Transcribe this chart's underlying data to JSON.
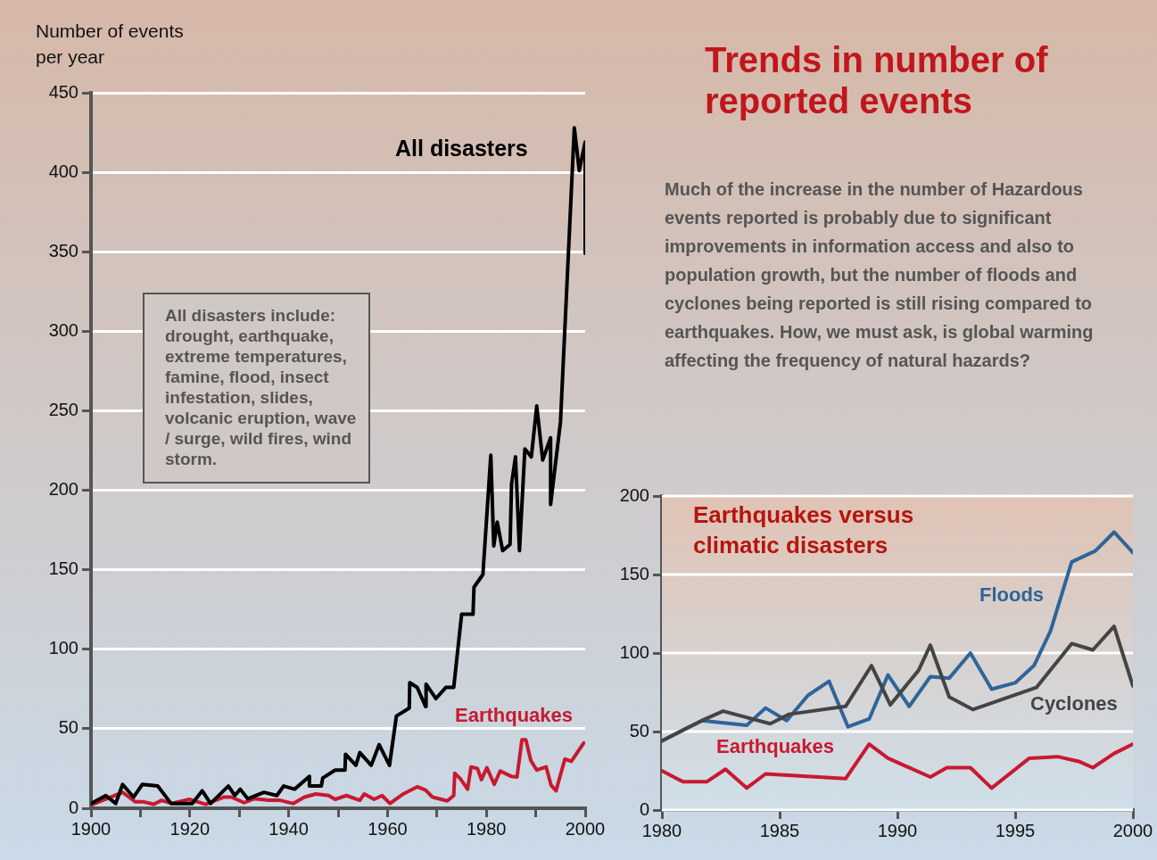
{
  "chart_data": [
    {
      "type": "line",
      "ylabel": "Number of events per year",
      "annotations": [
        "All disasters include: drought, earthquake, extreme temperatures, famine, flood, insect infestation, slides, volcanic eruption, wave / surge, wild fires, wind storm."
      ],
      "series": [
        {
          "name": "All disasters",
          "color": "#000000",
          "x": [
            1900,
            1903,
            1905,
            1906.4,
            1908.6,
            1910.4,
            1913.5,
            1916.2,
            1920.5,
            1922.5,
            1924.2,
            1926.5,
            1927.8,
            1929.1,
            1930.2,
            1931.7,
            1935,
            1937.6,
            1939,
            1941.2,
            1944.2,
            1944.2,
            1946.6,
            1946.9,
            1949.4,
            1951.4,
            1951.5,
            1953.6,
            1954.4,
            1956.7,
            1958.3,
            1960.4,
            1961.8,
            1964.4,
            1964.5,
            1966,
            1967.7,
            1967.8,
            1969.8,
            1971.8,
            1973.4,
            1975,
            1977.3,
            1977.5,
            1979.3,
            1980.9,
            1981.5,
            1982.2,
            1983.3,
            1984.8,
            1985.1,
            1985.9,
            1986.7,
            1987.8,
            1989.1,
            1990.2,
            1991.4,
            1993,
            1993,
            1995,
            1997.8,
            1998.8,
            2000,
            2000
          ],
          "values": [
            3,
            8,
            3,
            15,
            7,
            15,
            14,
            3,
            3,
            11,
            3,
            10,
            14,
            8,
            12,
            6,
            10,
            8,
            14,
            12,
            20,
            14,
            14,
            19,
            24,
            24,
            34,
            27,
            35,
            27,
            40,
            27,
            58,
            63,
            79,
            76,
            64,
            78,
            69,
            76,
            76,
            122,
            122,
            139,
            147,
            222,
            165,
            180,
            162,
            166,
            204,
            221,
            162,
            226,
            221,
            253,
            219,
            233,
            191,
            243,
            428,
            401,
            419,
            349
          ]
        },
        {
          "name": "Earthquakes",
          "color": "#c8192f",
          "x": [
            1900,
            1906.4,
            1909,
            1910.7,
            1912.7,
            1914.3,
            1916.3,
            1919.9,
            1923.2,
            1926.8,
            1928.4,
            1931,
            1933,
            1936,
            1938.3,
            1940.9,
            1943.2,
            1945.5,
            1948.1,
            1949.4,
            1951.7,
            1954.4,
            1955.3,
            1957.3,
            1958.9,
            1960.5,
            1963.2,
            1966,
            1967.7,
            1969.1,
            1972.1,
            1973.4,
            1973.6,
            1974.7,
            1976.2,
            1976.9,
            1978.2,
            1979,
            1980.1,
            1981.6,
            1982.8,
            1985.1,
            1986.2,
            1987.2,
            1988,
            1989,
            1990.2,
            1992.1,
            1993.1,
            1994.1,
            1995.9,
            1997.2,
            1999.7
          ],
          "values": [
            2,
            10,
            4,
            4,
            2.5,
            5,
            3,
            5.6,
            2.5,
            7,
            7,
            3.5,
            6,
            5,
            5,
            3,
            7,
            9,
            8,
            5.6,
            8,
            5,
            9,
            5.6,
            8,
            3,
            9,
            13.5,
            11.4,
            7,
            4.6,
            8,
            22,
            18.7,
            12,
            26,
            25,
            18,
            25.5,
            15,
            23.4,
            20,
            19.7,
            43,
            43,
            30,
            24,
            26,
            14.5,
            11,
            31,
            29.5,
            41
          ]
        }
      ],
      "xlim": [
        1900,
        2000
      ],
      "xticks": [
        1900,
        {
          "value": 1910,
          "label": null
        },
        1920,
        {
          "value": 1930,
          "label": null
        },
        1940,
        {
          "value": 1950,
          "label": null
        },
        1960,
        {
          "value": 1970,
          "label": null
        },
        1980,
        {
          "value": 1990,
          "label": null
        },
        2000
      ],
      "ylim": [
        0,
        450
      ],
      "yticks": [
        0,
        50,
        100,
        150,
        200,
        250,
        300,
        350,
        400,
        450
      ],
      "grid": "y",
      "marker": "none",
      "line_style": "solid"
    },
    {
      "type": "other",
      "title": "Trends in number of reported events",
      "subtitle": "Much of the increase in the number of Hazardous events reported is probably due to significant improvements in information access and also to population growth, but the number of floods and cyclones being reported is still rising compared to earthquakes. How, we must ask, is global warming affecting the frequency of natural hazards?"
    },
    {
      "type": "line",
      "title": "Earthquakes versus climatic disasters",
      "series": [
        {
          "name": "Cyclones",
          "color": "#444444",
          "x": [
            1980,
            1981.7,
            1982.6,
            1984.6,
            1985.4,
            1987.8,
            1988.9,
            1989.7,
            1990.9,
            1991.4,
            1992.2,
            1993.2,
            1995.9,
            1997.4,
            1998.3,
            1999.2,
            2000
          ],
          "values": [
            44,
            57,
            63,
            55,
            61,
            66,
            92,
            67,
            89,
            105,
            72,
            64,
            78,
            106,
            102,
            117,
            79
          ]
        },
        {
          "name": "Floods",
          "color": "#2e6599",
          "x": [
            1980,
            1981.7,
            1983.6,
            1984.4,
            1985.3,
            1986.2,
            1987.1,
            1987.9,
            1988.8,
            1989.6,
            1990.5,
            1991.4,
            1992.2,
            1993.1,
            1994,
            1995,
            1995.8,
            1996.5,
            1997.4,
            1998.4,
            1999.2,
            2000
          ],
          "values": [
            44,
            57,
            54,
            65,
            57,
            73,
            82,
            53,
            58,
            86,
            66,
            85,
            84,
            100,
            77,
            81,
            92,
            114,
            158,
            165,
            177,
            164
          ]
        },
        {
          "name": "Earthquakes",
          "color": "#c8192f",
          "x": [
            1980,
            1980.9,
            1981.9,
            1982.7,
            1983.6,
            1984.4,
            1987.8,
            1988.8,
            1989.6,
            1991.4,
            1992.1,
            1993.1,
            1994,
            1995.6,
            1996.8,
            1997.7,
            1998.3,
            1999.2,
            2000
          ],
          "values": [
            25,
            18,
            18,
            26,
            14,
            23,
            20,
            42,
            33,
            21,
            27,
            27,
            14,
            33,
            34,
            31,
            27,
            36,
            42
          ]
        }
      ],
      "xlim": [
        1980,
        2000
      ],
      "xticks": [
        1980,
        1985,
        1990,
        1995,
        2000
      ],
      "ylim": [
        0,
        200
      ],
      "yticks": [
        0,
        50,
        100,
        150,
        200
      ],
      "grid": "y",
      "marker": "none",
      "line_style": "solid"
    }
  ]
}
